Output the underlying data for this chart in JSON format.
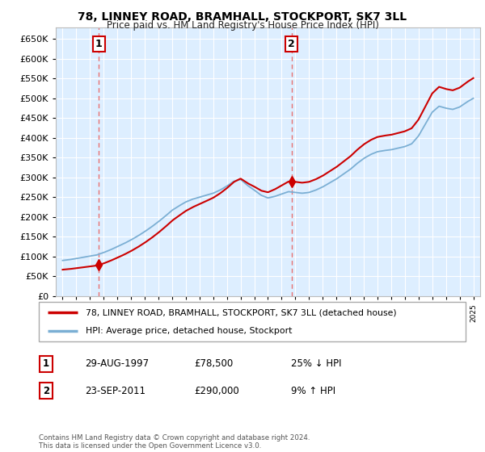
{
  "title": "78, LINNEY ROAD, BRAMHALL, STOCKPORT, SK7 3LL",
  "subtitle": "Price paid vs. HM Land Registry's House Price Index (HPI)",
  "legend_line1": "78, LINNEY ROAD, BRAMHALL, STOCKPORT, SK7 3LL (detached house)",
  "legend_line2": "HPI: Average price, detached house, Stockport",
  "footnote": "Contains HM Land Registry data © Crown copyright and database right 2024.\nThis data is licensed under the Open Government Licence v3.0.",
  "table_rows": [
    {
      "num": "1",
      "date": "29-AUG-1997",
      "price": "£78,500",
      "hpi": "25% ↓ HPI"
    },
    {
      "num": "2",
      "date": "23-SEP-2011",
      "price": "£290,000",
      "hpi": "9% ↑ HPI"
    }
  ],
  "sale1_year": 1997.65,
  "sale1_price": 78500,
  "sale2_year": 2011.72,
  "sale2_price": 290000,
  "red_line_color": "#cc0000",
  "blue_line_color": "#7bafd4",
  "dashed_line_color": "#e87070",
  "plot_bg_color": "#ddeeff",
  "grid_color": "#ffffff",
  "ylim": [
    0,
    680000
  ],
  "yticks": [
    0,
    50000,
    100000,
    150000,
    200000,
    250000,
    300000,
    350000,
    400000,
    450000,
    500000,
    550000,
    600000,
    650000
  ],
  "xmin": 1994.5,
  "xmax": 2025.5,
  "hpi_years": [
    1995,
    1995.5,
    1996,
    1996.5,
    1997,
    1997.5,
    1998,
    1998.5,
    1999,
    1999.5,
    2000,
    2000.5,
    2001,
    2001.5,
    2002,
    2002.5,
    2003,
    2003.5,
    2004,
    2004.5,
    2005,
    2005.5,
    2006,
    2006.5,
    2007,
    2007.5,
    2008,
    2008.5,
    2009,
    2009.5,
    2010,
    2010.5,
    2011,
    2011.5,
    2012,
    2012.5,
    2013,
    2013.5,
    2014,
    2014.5,
    2015,
    2015.5,
    2016,
    2016.5,
    2017,
    2017.5,
    2018,
    2018.5,
    2019,
    2019.5,
    2020,
    2020.5,
    2021,
    2021.5,
    2022,
    2022.5,
    2023,
    2023.5,
    2024,
    2024.5,
    2025
  ],
  "hpi_vals": [
    90000,
    92000,
    95000,
    98000,
    101000,
    104000,
    110000,
    117000,
    125000,
    133000,
    142000,
    152000,
    163000,
    175000,
    188000,
    202000,
    217000,
    228000,
    238000,
    245000,
    250000,
    255000,
    260000,
    268000,
    278000,
    290000,
    295000,
    280000,
    268000,
    255000,
    248000,
    252000,
    258000,
    264000,
    262000,
    260000,
    262000,
    268000,
    276000,
    286000,
    296000,
    308000,
    320000,
    335000,
    348000,
    358000,
    365000,
    368000,
    370000,
    374000,
    378000,
    385000,
    405000,
    435000,
    465000,
    480000,
    475000,
    472000,
    478000,
    490000,
    500000
  ]
}
